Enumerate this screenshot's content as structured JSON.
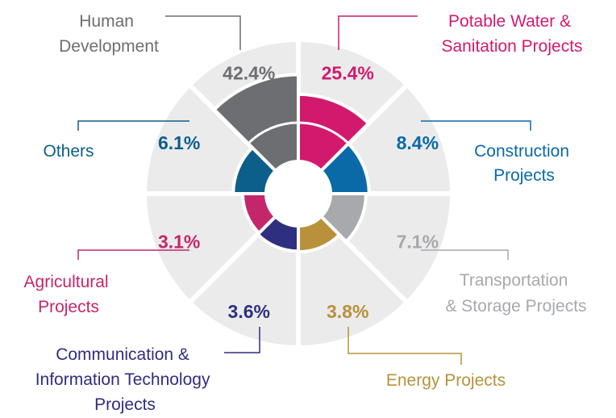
{
  "chart_data": {
    "type": "polar-area",
    "categories": [
      "Potable Water & Sanitation Projects",
      "Construction Projects",
      "Transportation & Storage Projects",
      "Energy Projects",
      "Communication & Information Technology Projects",
      "Agricultural Projects",
      "Others",
      "Human Development"
    ],
    "values": [
      25.4,
      8.4,
      7.1,
      3.8,
      3.6,
      3.1,
      6.1,
      42.4
    ],
    "value_labels": [
      "25.4%",
      "8.4%",
      "7.1%",
      "3.8%",
      "3.6%",
      "3.1%",
      "6.1%",
      "42.4%"
    ],
    "colors": [
      "#d11a6e",
      "#0a6aa8",
      "#a7a9ac",
      "#b8913a",
      "#2e2f7f",
      "#c4266c",
      "#0c5f8a",
      "#6d6e71"
    ]
  }
}
